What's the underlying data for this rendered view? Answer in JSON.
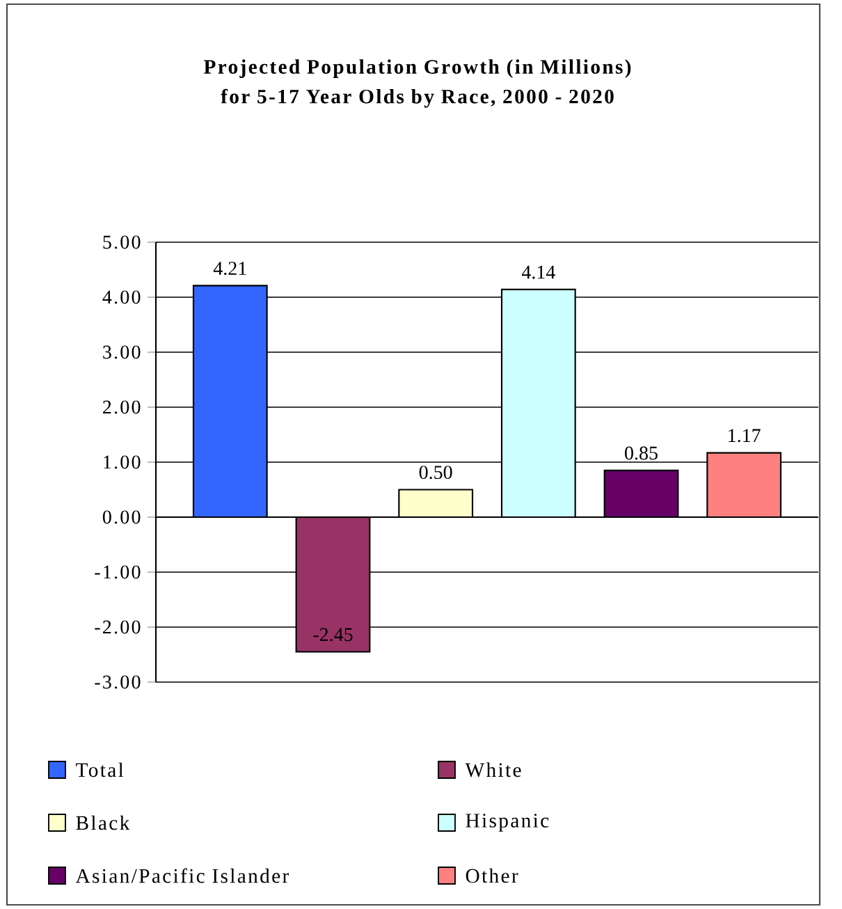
{
  "chart_data": {
    "type": "bar",
    "title": "Projected Population Growth (in Millions) for 5-17 Year Olds by Race, 2000 - 2020",
    "categories": [
      null
    ],
    "series": [
      {
        "name": "Total",
        "color": "#3366ff",
        "values": [
          4.21
        ],
        "value_labels": [
          "4.21"
        ]
      },
      {
        "name": "White",
        "color": "#993366",
        "values": [
          -2.45
        ],
        "value_labels": [
          "-2.45"
        ]
      },
      {
        "name": "Black",
        "color": "#ffffcc",
        "values": [
          0.5
        ],
        "value_labels": [
          "0.50"
        ]
      },
      {
        "name": "Hispanic",
        "color": "#ccffff",
        "values": [
          4.14
        ],
        "value_labels": [
          "4.14"
        ]
      },
      {
        "name": "Asian/Pacific Islander",
        "color": "#660066",
        "values": [
          0.85
        ],
        "value_labels": [
          "0.85"
        ]
      },
      {
        "name": "Other",
        "color": "#ff8080",
        "values": [
          1.17
        ],
        "value_labels": [
          "1.17"
        ]
      }
    ],
    "ylim": [
      -3,
      5
    ],
    "yticks": [
      {
        "value": -3,
        "label": "-3.00"
      },
      {
        "value": -2,
        "label": "-2.00"
      },
      {
        "value": -1,
        "label": "-1.00"
      },
      {
        "value": 0,
        "label": "0.00"
      },
      {
        "value": 1,
        "label": "1.00"
      },
      {
        "value": 2,
        "label": "2.00"
      },
      {
        "value": 3,
        "label": "3.00"
      },
      {
        "value": 4,
        "label": "4.00"
      },
      {
        "value": 5,
        "label": "5.00"
      }
    ],
    "grid": "y",
    "legend": "bottom"
  }
}
